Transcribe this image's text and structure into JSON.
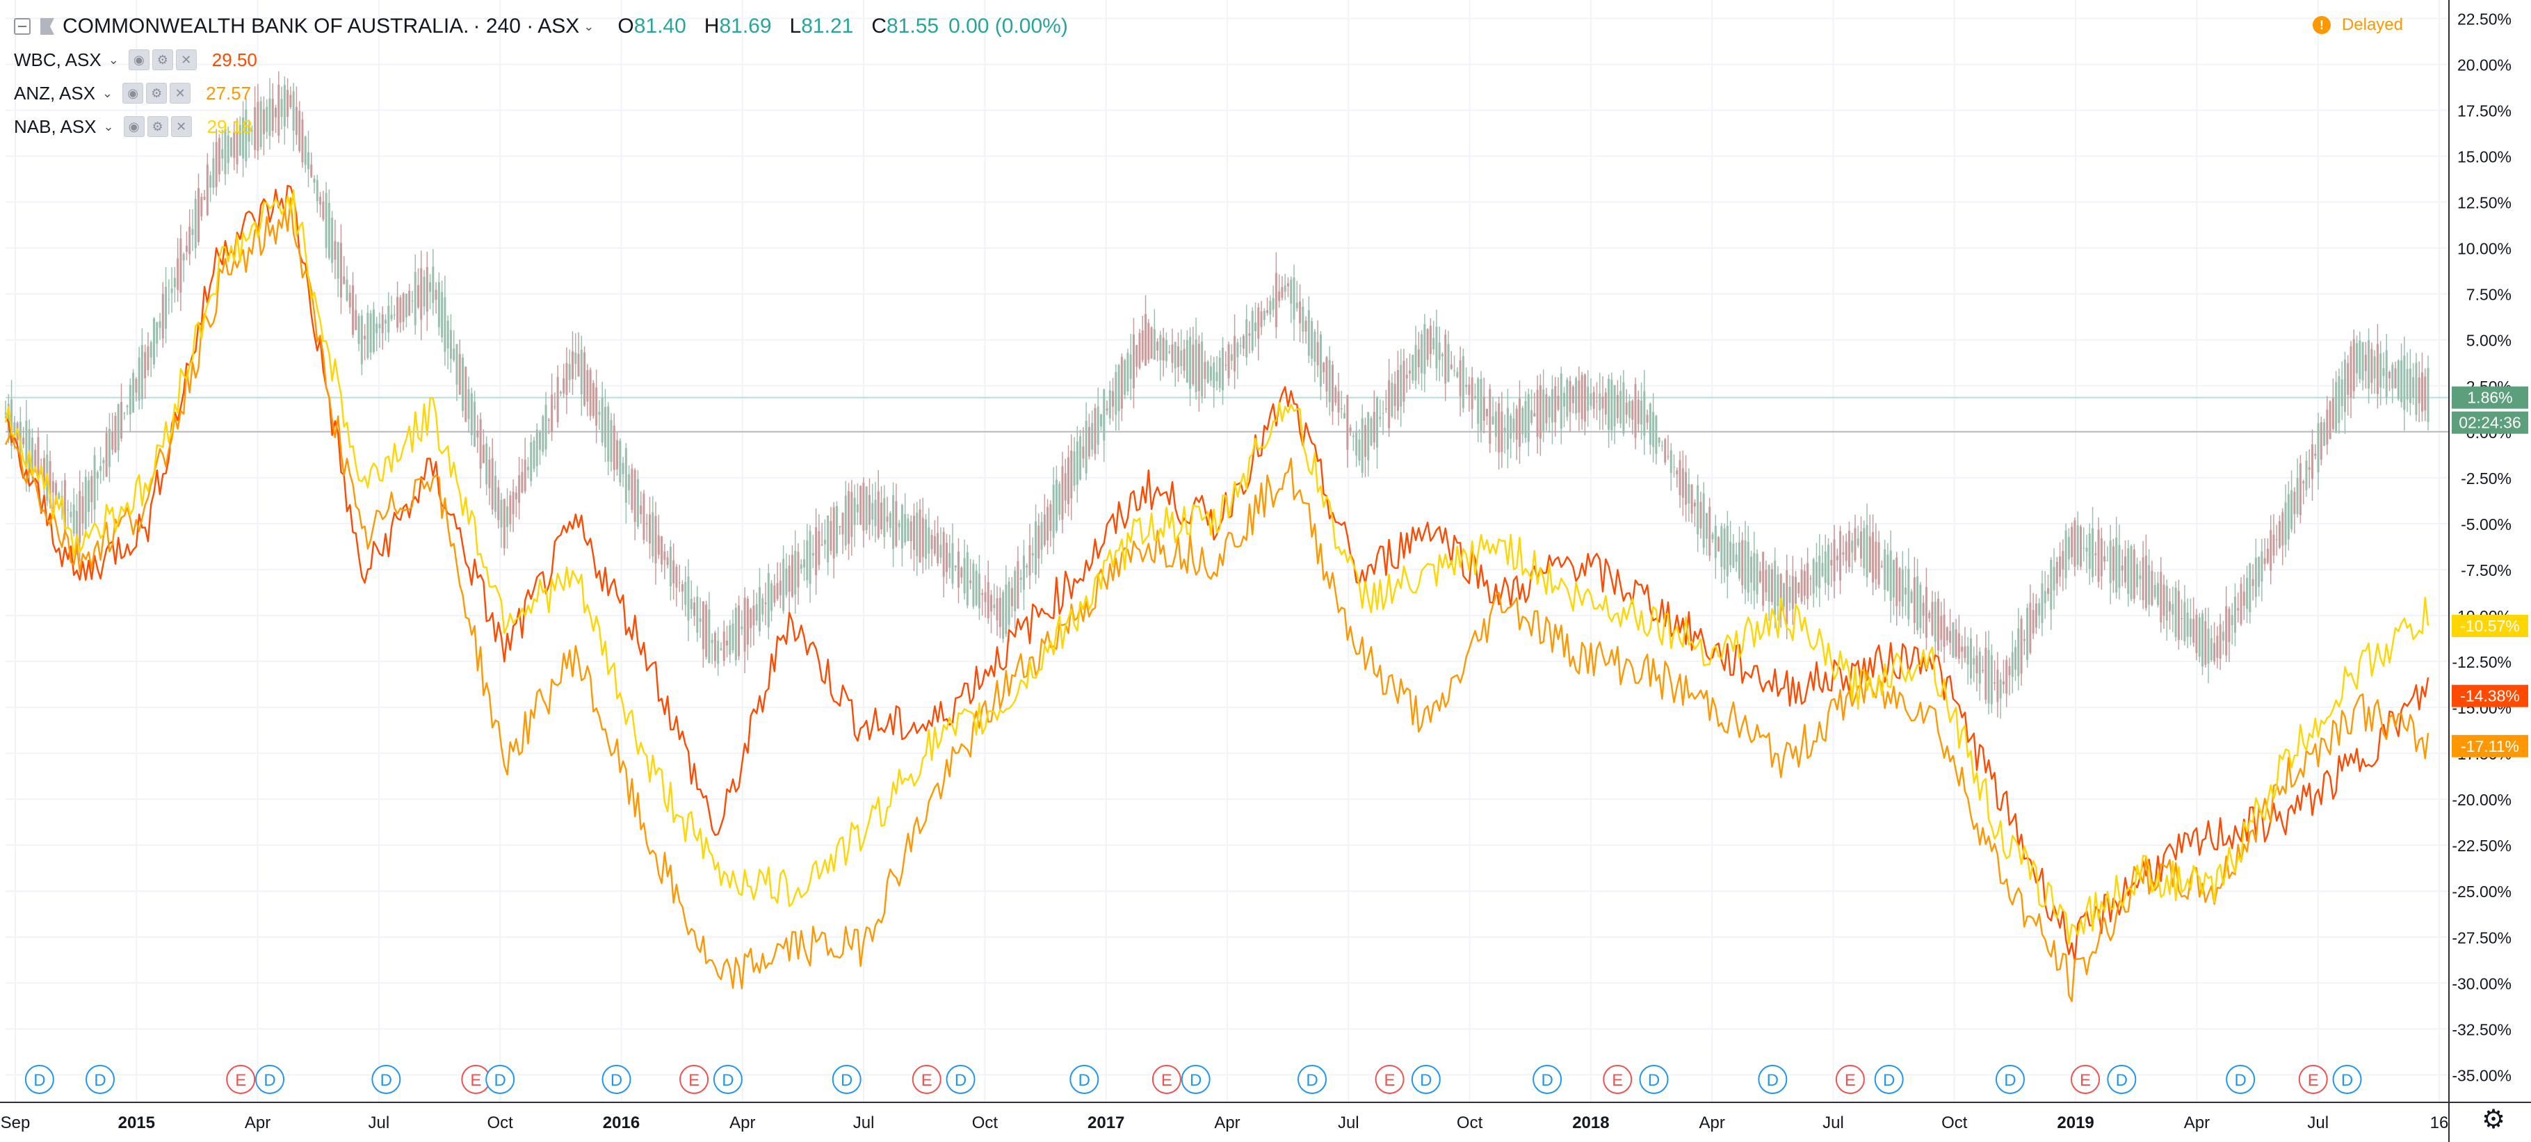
{
  "header": {
    "symbol": "COMMONWEALTH BANK OF AUSTRALIA.",
    "interval": "240",
    "exchange": "ASX",
    "ohlc": {
      "o_label": "O",
      "o": "81.40",
      "h_label": "H",
      "h": "81.69",
      "l_label": "L",
      "l": "81.21",
      "c_label": "C",
      "c": "81.55",
      "change": "0.00 (0.00%)"
    },
    "delayed": "Delayed"
  },
  "comparisons": [
    {
      "name": "WBC, ASX",
      "value": "29.50",
      "color": "#ff4a00"
    },
    {
      "name": "ANZ, ASX",
      "value": "27.57",
      "color": "#ff9800"
    },
    {
      "name": "NAB, ASX",
      "value": "29.18",
      "color": "#ffd600"
    }
  ],
  "colors": {
    "up": "#26a69a",
    "down": "#ef5350",
    "cba_candle": "#8c8c8c",
    "grid": "#f0f3fa",
    "axis_text": "#131722"
  },
  "chart_data": {
    "type": "line",
    "title": "",
    "x_ticks": [
      "Sep",
      "2015",
      "Apr",
      "Jul",
      "Oct",
      "2016",
      "Apr",
      "Jul",
      "Oct",
      "2017",
      "Apr",
      "Jul",
      "Oct",
      "2018",
      "Apr",
      "Jul",
      "Oct",
      "2019",
      "Apr",
      "Jul",
      "16"
    ],
    "y_ticks": [
      "22.50%",
      "20.00%",
      "17.50%",
      "15.00%",
      "12.50%",
      "10.00%",
      "7.50%",
      "5.00%",
      "2.50%",
      "0.00%",
      "-2.50%",
      "-5.00%",
      "-7.50%",
      "-10.00%",
      "-12.50%",
      "-15.00%",
      "-17.50%",
      "-20.00%",
      "-22.50%",
      "-25.00%",
      "-27.50%",
      "-30.00%",
      "-32.50%",
      "-35.00%"
    ],
    "ylim": [
      -36.5,
      23.5
    ],
    "y_unit": "percent change",
    "dates": [
      "2014-09",
      "2014-11",
      "2015-01",
      "2015-03",
      "2015-04",
      "2015-06",
      "2015-08",
      "2015-09",
      "2015-11",
      "2016-01",
      "2016-02",
      "2016-04",
      "2016-06",
      "2016-07",
      "2016-09",
      "2016-11",
      "2017-01",
      "2017-02",
      "2017-04",
      "2017-06",
      "2017-08",
      "2017-10",
      "2017-11",
      "2018-01",
      "2018-03",
      "2018-05",
      "2018-07",
      "2018-09",
      "2018-10",
      "2018-12",
      "2019-02",
      "2019-03",
      "2019-05",
      "2019-07",
      "2019-09"
    ],
    "series": [
      {
        "name": "COMMONWEALTH BANK OF AUSTRALIA.",
        "values": [
          1,
          -5,
          4,
          15,
          18,
          5,
          8,
          -5,
          4,
          -5,
          -12,
          -8,
          -4,
          -6,
          -10,
          -2,
          5,
          3,
          8,
          -1,
          5,
          0,
          2,
          1,
          -6,
          -9,
          -6,
          -10,
          -14,
          -6,
          -8,
          -12,
          -5,
          4,
          2
        ]
      },
      {
        "name": "WBC, ASX",
        "values": [
          0,
          -8,
          -5,
          10,
          13,
          -8,
          -2,
          -12,
          -5,
          -12,
          -22,
          -10,
          -16,
          -16,
          -12,
          -8,
          -3,
          -5,
          2,
          -8,
          -5,
          -9,
          -7,
          -9,
          -12,
          -14,
          -13,
          -12,
          -20,
          -28,
          -24,
          -22,
          -21,
          -18,
          -14
        ]
      },
      {
        "name": "ANZ, ASX",
        "values": [
          0,
          -7,
          -4,
          8,
          12,
          -6,
          -2,
          -18,
          -12,
          -22,
          -30,
          -28,
          -28,
          -20,
          -14,
          -10,
          -6,
          -7,
          -2,
          -12,
          -16,
          -9,
          -12,
          -13,
          -15,
          -18,
          -14,
          -15,
          -24,
          -30,
          -24,
          -25,
          -19,
          -15,
          -17
        ]
      },
      {
        "name": "NAB, ASX",
        "values": [
          1,
          -6,
          -3,
          9,
          13,
          -3,
          1,
          -10,
          -8,
          -18,
          -24,
          -25,
          -22,
          -17,
          -15,
          -10,
          -5,
          -5,
          2,
          -9,
          -8,
          -6,
          -9,
          -10,
          -12,
          -10,
          -14,
          -12,
          -22,
          -27,
          -24,
          -25,
          -18,
          -13,
          -10
        ]
      }
    ],
    "last_labels": [
      {
        "text": "1.86%",
        "value": 1.86,
        "color": "#5c9f7c"
      },
      {
        "text": "02:24:36",
        "value": -0.2,
        "color": "#5c9f7c"
      },
      {
        "text": "-10.57%",
        "value": -10.57,
        "color": "#ffd600"
      },
      {
        "text": "-14.38%",
        "value": -14.38,
        "color": "#ff4a00"
      },
      {
        "text": "-17.11%",
        "value": -17.11,
        "color": "#ff9800"
      }
    ],
    "event_markers": [
      {
        "t": "D",
        "date": 0.01
      },
      {
        "t": "D",
        "date": 0.035
      },
      {
        "t": "E",
        "date": 0.093
      },
      {
        "t": "D",
        "date": 0.105
      },
      {
        "t": "D",
        "date": 0.153
      },
      {
        "t": "E",
        "date": 0.19
      },
      {
        "t": "D",
        "date": 0.2
      },
      {
        "t": "D",
        "date": 0.248
      },
      {
        "t": "E",
        "date": 0.28
      },
      {
        "t": "D",
        "date": 0.294
      },
      {
        "t": "D",
        "date": 0.343
      },
      {
        "t": "E",
        "date": 0.376
      },
      {
        "t": "D",
        "date": 0.39
      },
      {
        "t": "D",
        "date": 0.441
      },
      {
        "t": "E",
        "date": 0.475
      },
      {
        "t": "D",
        "date": 0.487
      },
      {
        "t": "D",
        "date": 0.535
      },
      {
        "t": "E",
        "date": 0.567
      },
      {
        "t": "D",
        "date": 0.582
      },
      {
        "t": "D",
        "date": 0.632
      },
      {
        "t": "E",
        "date": 0.661
      },
      {
        "t": "D",
        "date": 0.676
      },
      {
        "t": "D",
        "date": 0.725
      },
      {
        "t": "E",
        "date": 0.757
      },
      {
        "t": "D",
        "date": 0.773
      },
      {
        "t": "D",
        "date": 0.823
      },
      {
        "t": "E",
        "date": 0.854
      },
      {
        "t": "D",
        "date": 0.869
      },
      {
        "t": "D",
        "date": 0.918
      },
      {
        "t": "E",
        "date": 0.948
      },
      {
        "t": "D",
        "date": 0.962
      }
    ]
  }
}
